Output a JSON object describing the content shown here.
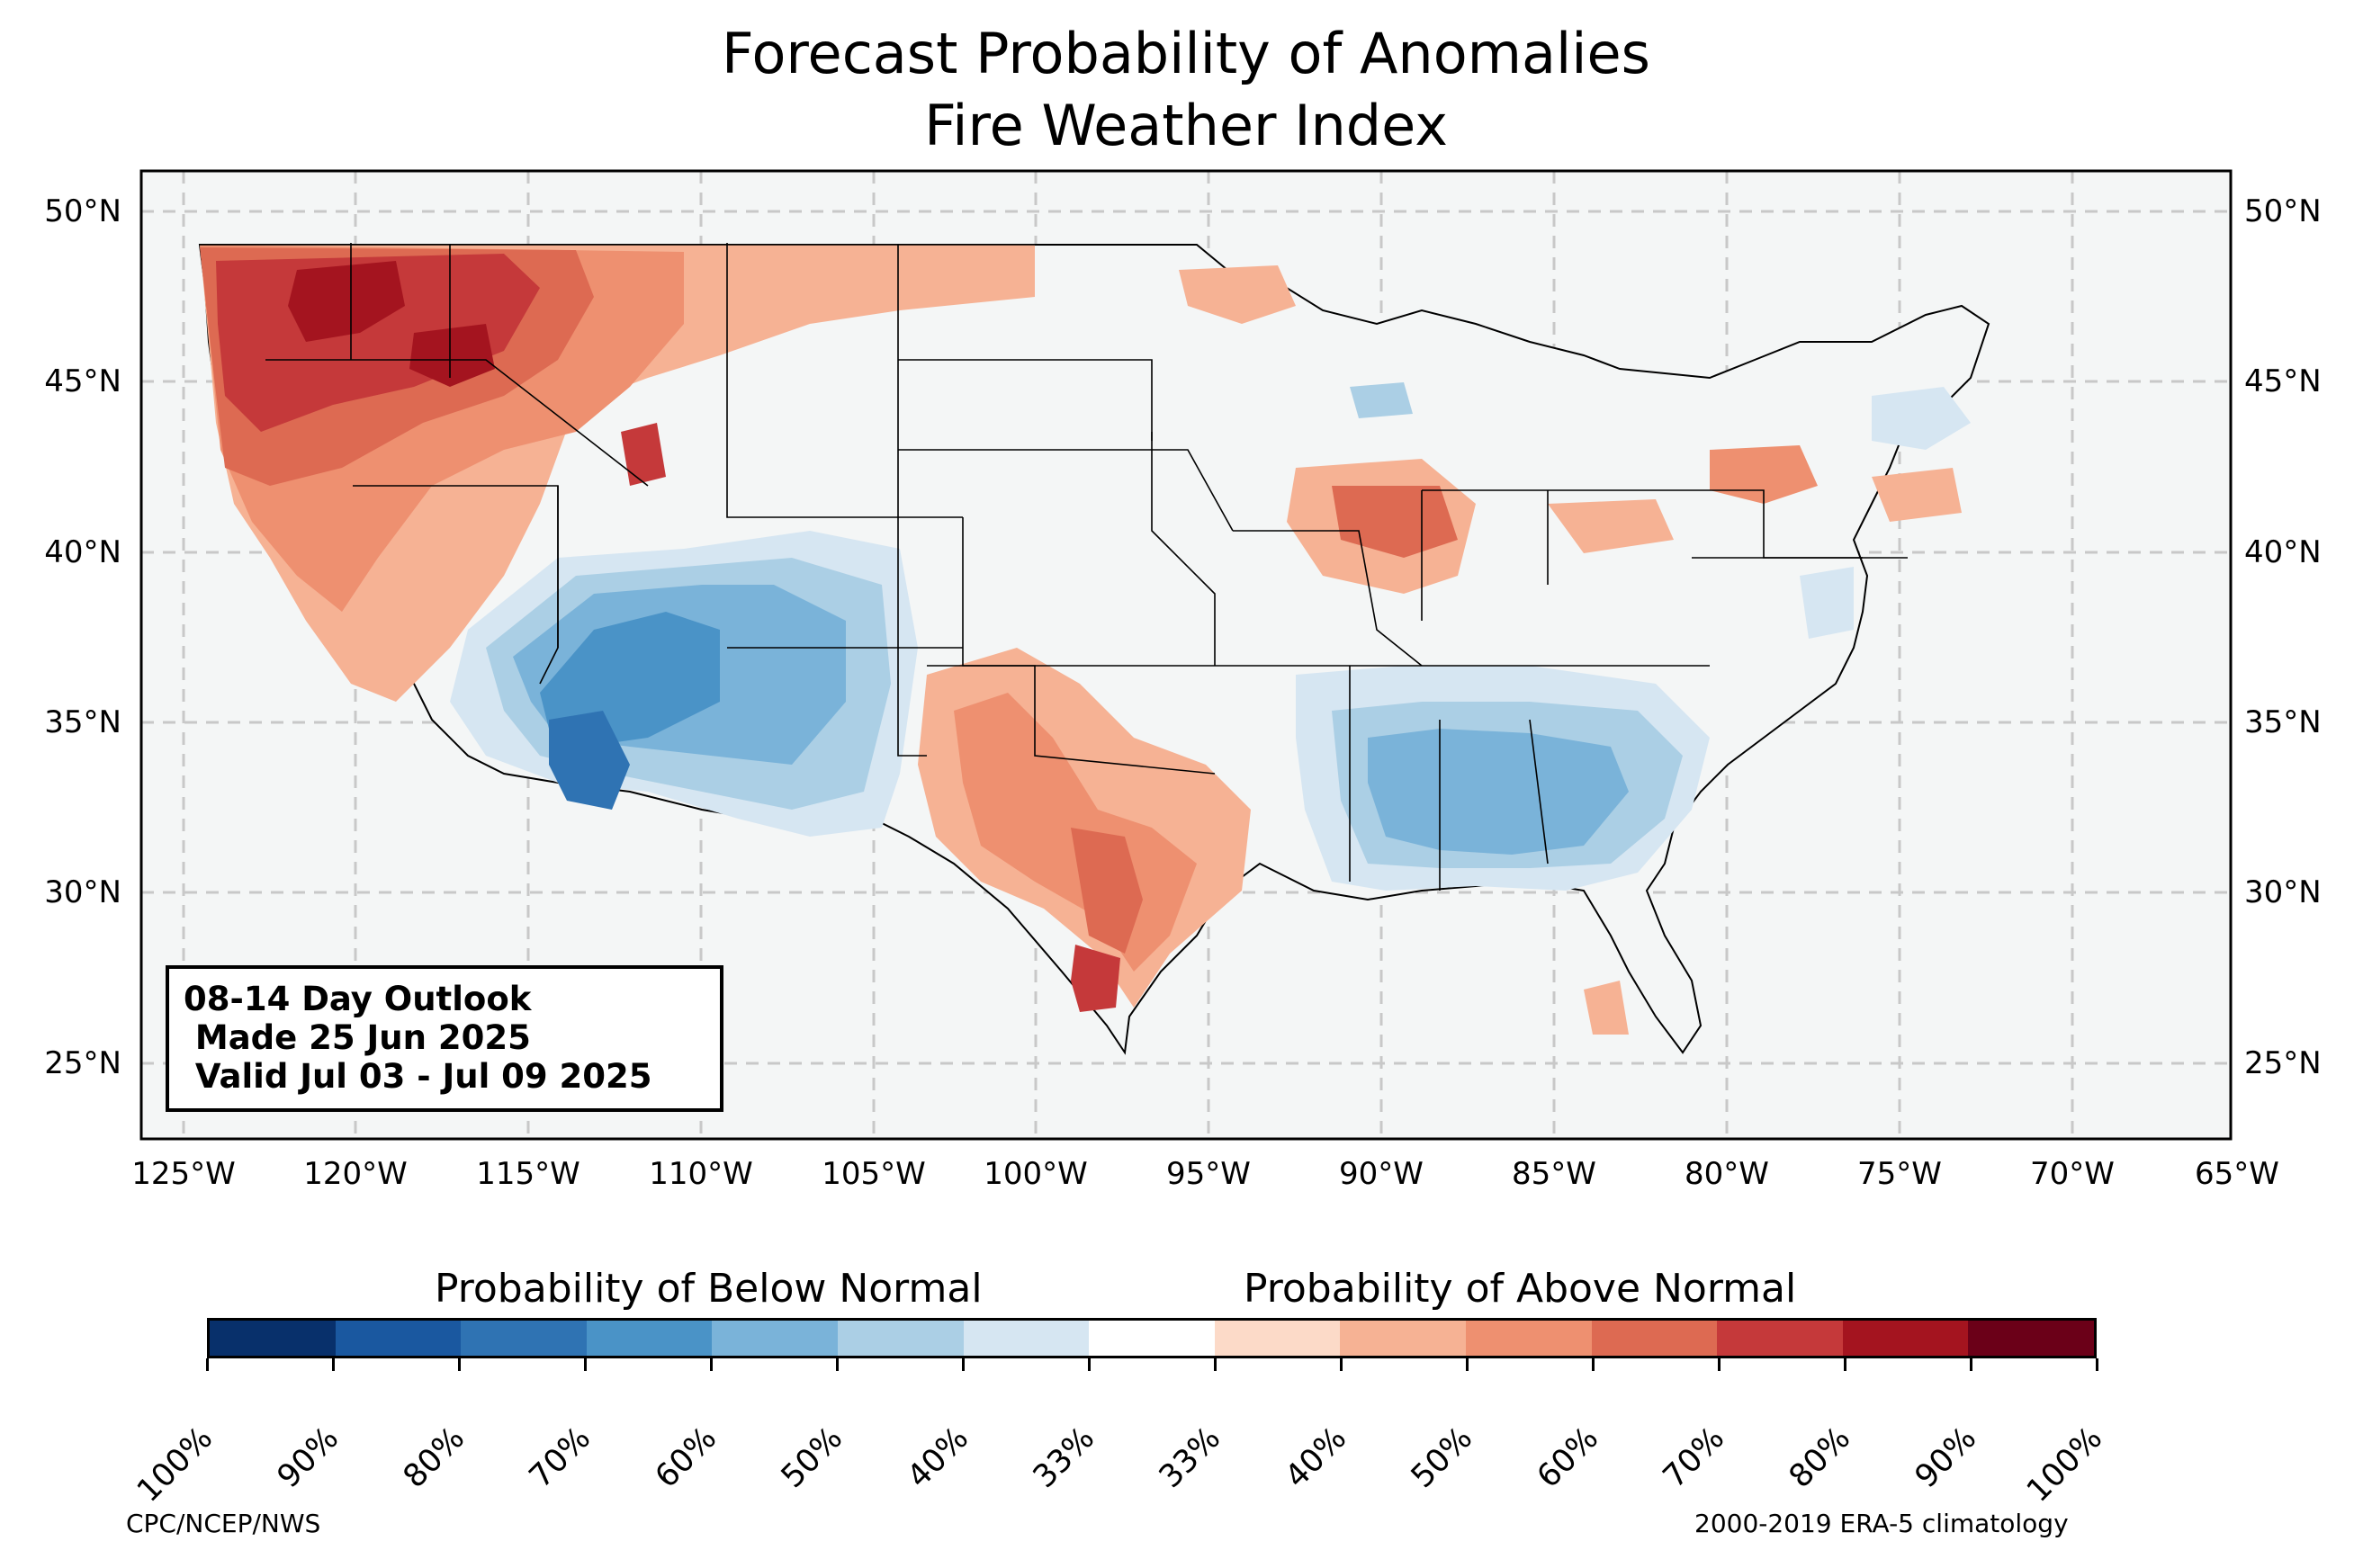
{
  "title": {
    "line1": "Forecast Probability of Anomalies",
    "line2": "Fire Weather Index"
  },
  "map": {
    "lat_ticks": [
      "50°N",
      "45°N",
      "40°N",
      "35°N",
      "30°N",
      "25°N"
    ],
    "lon_ticks": [
      "125°W",
      "120°W",
      "115°W",
      "110°W",
      "105°W",
      "100°W",
      "95°W",
      "90°W",
      "85°W",
      "80°W",
      "75°W",
      "70°W",
      "65°W"
    ],
    "background_color": "#f4f6f6",
    "gridlines": true
  },
  "outlook": {
    "line1": "08-14 Day Outlook",
    "line2": " Made 25 Jun 2025",
    "line3": " Valid Jul 03 - Jul 09 2025"
  },
  "colorbar": {
    "below_label": "Probability of Below Normal",
    "above_label": "Probability of Above Normal",
    "tick_labels": [
      "100%",
      "90%",
      "80%",
      "70%",
      "60%",
      "50%",
      "40%",
      "33%",
      "33%",
      "40%",
      "50%",
      "60%",
      "70%",
      "80%",
      "90%",
      "100%"
    ],
    "colors": [
      "#08306b",
      "#1a58a0",
      "#2f73b3",
      "#4a93c7",
      "#7ab3d9",
      "#abcfe5",
      "#d6e6f2",
      "#ffffff",
      "#fcdac8",
      "#f6b294",
      "#ee9070",
      "#dd6a52",
      "#c5393a",
      "#a4141f",
      "#6b0018"
    ]
  },
  "footer": {
    "left": "CPC/NCEP/NWS",
    "right": "2000-2019 ERA-5 climatology"
  }
}
